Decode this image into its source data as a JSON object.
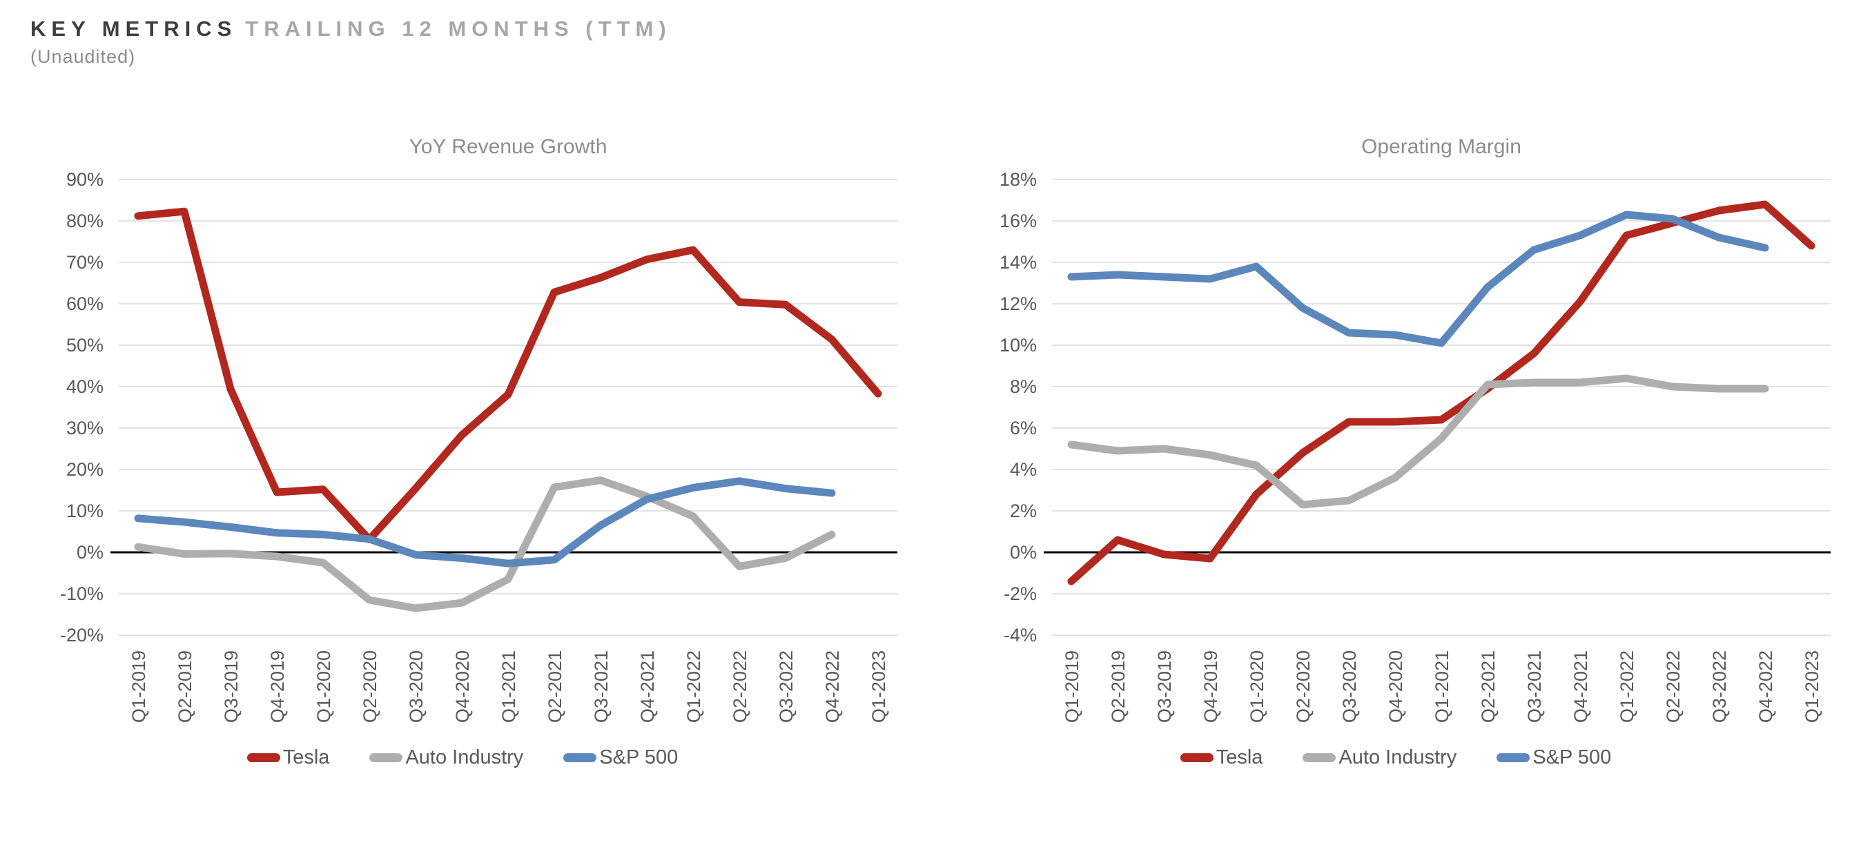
{
  "header": {
    "title_primary": "KEY METRICS",
    "title_secondary": "TRAILING 12 MONTHS (TTM)",
    "subtitle": "(Unaudited)"
  },
  "colors": {
    "tesla": "#b2281e",
    "auto": "#aeaeae",
    "sp500": "#5c87bc",
    "grid": "#dadada",
    "zero": "#000000",
    "axis_text": "#595959",
    "title_text": "#8d8d8d"
  },
  "chart_data": [
    {
      "type": "line",
      "title": "YoY Revenue Growth",
      "categories": [
        "Q1-2019",
        "Q2-2019",
        "Q3-2019",
        "Q4-2019",
        "Q1-2020",
        "Q2-2020",
        "Q3-2020",
        "Q4-2020",
        "Q1-2021",
        "Q2-2021",
        "Q3-2021",
        "Q4-2021",
        "Q1-2022",
        "Q2-2022",
        "Q3-2022",
        "Q4-2022",
        "Q1-2023"
      ],
      "xlabel": "",
      "ylabel": "",
      "ylim": [
        -20,
        90
      ],
      "ytick_step": 10,
      "ytick_format": "percent",
      "grid": true,
      "legend_position": "bottom",
      "series": [
        {
          "name": "Tesla",
          "color_key": "tesla",
          "values": [
            81.2,
            82.3,
            39.4,
            14.5,
            15.2,
            3.1,
            15.4,
            28.3,
            38.1,
            62.8,
            66.3,
            70.7,
            73.0,
            60.4,
            59.8,
            51.4,
            38.3
          ]
        },
        {
          "name": "Auto Industry",
          "color_key": "auto",
          "values": [
            1.3,
            -0.4,
            -0.3,
            -1.0,
            -2.5,
            -11.5,
            -13.5,
            -12.2,
            -6.5,
            15.7,
            17.4,
            13.5,
            8.7,
            -3.4,
            -1.4,
            4.3
          ]
        },
        {
          "name": "S&P 500",
          "color_key": "sp500",
          "values": [
            8.2,
            7.3,
            6.1,
            4.7,
            4.3,
            3.2,
            -0.6,
            -1.4,
            -2.7,
            -1.8,
            6.5,
            12.8,
            15.6,
            17.2,
            15.4,
            14.3
          ]
        }
      ]
    },
    {
      "type": "line",
      "title": "Operating Margin",
      "categories": [
        "Q1-2019",
        "Q2-2019",
        "Q3-2019",
        "Q4-2019",
        "Q1-2020",
        "Q2-2020",
        "Q3-2020",
        "Q4-2020",
        "Q1-2021",
        "Q2-2021",
        "Q3-2021",
        "Q4-2021",
        "Q1-2022",
        "Q2-2022",
        "Q3-2022",
        "Q4-2022",
        "Q1-2023"
      ],
      "xlabel": "",
      "ylabel": "",
      "ylim": [
        -4,
        18
      ],
      "ytick_step": 2,
      "ytick_format": "percent",
      "grid": true,
      "legend_position": "bottom",
      "series": [
        {
          "name": "Tesla",
          "color_key": "tesla",
          "values": [
            -1.4,
            0.6,
            -0.1,
            -0.3,
            2.8,
            4.8,
            6.3,
            6.3,
            6.4,
            7.9,
            9.6,
            12.1,
            15.3,
            15.9,
            16.5,
            16.8,
            14.8
          ]
        },
        {
          "name": "Auto Industry",
          "color_key": "auto",
          "values": [
            5.2,
            4.9,
            5.0,
            4.7,
            4.2,
            2.3,
            2.5,
            3.6,
            5.5,
            8.1,
            8.2,
            8.2,
            8.4,
            8.0,
            7.9,
            7.9
          ]
        },
        {
          "name": "S&P 500",
          "color_key": "sp500",
          "values": [
            13.3,
            13.4,
            13.3,
            13.2,
            13.8,
            11.8,
            10.6,
            10.5,
            10.1,
            12.8,
            14.6,
            15.3,
            16.3,
            16.1,
            15.2,
            14.7
          ]
        }
      ]
    }
  ]
}
